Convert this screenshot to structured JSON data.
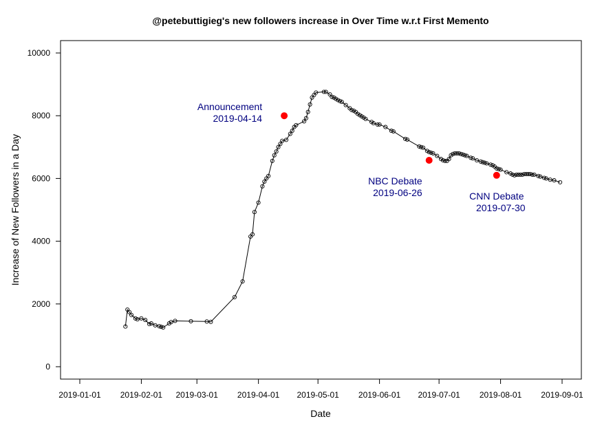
{
  "chart_data": {
    "type": "scatter",
    "title": "@petebuttigieg's new followers increase in Over Time w.r.t First Memento",
    "xlabel": "Date",
    "ylabel": "Increase of New Followers in a Day",
    "xlim": [
      "2019-01-01",
      "2019-09-01"
    ],
    "ylim": [
      0,
      10000
    ],
    "x_ticks": [
      "2019-01-01",
      "2019-02-01",
      "2019-03-01",
      "2019-04-01",
      "2019-05-01",
      "2019-06-01",
      "2019-07-01",
      "2019-08-01",
      "2019-09-01"
    ],
    "y_ticks": [
      0,
      2000,
      4000,
      6000,
      8000,
      10000
    ],
    "grid": false,
    "legend": "none",
    "marker": "open-circle",
    "line": true,
    "series_color": "#000000",
    "highlight_color": "#ff0000",
    "annotation_color": "#000080",
    "points": [
      [
        "2019-01-24",
        1280
      ],
      [
        "2019-01-25",
        1820
      ],
      [
        "2019-01-26",
        1740
      ],
      [
        "2019-01-27",
        1650
      ],
      [
        "2019-01-29",
        1540
      ],
      [
        "2019-01-30",
        1510
      ],
      [
        "2019-02-01",
        1540
      ],
      [
        "2019-02-03",
        1490
      ],
      [
        "2019-02-05",
        1360
      ],
      [
        "2019-02-06",
        1380
      ],
      [
        "2019-02-08",
        1320
      ],
      [
        "2019-02-10",
        1290
      ],
      [
        "2019-02-11",
        1270
      ],
      [
        "2019-02-12",
        1250
      ],
      [
        "2019-02-15",
        1380
      ],
      [
        "2019-02-16",
        1420
      ],
      [
        "2019-02-18",
        1460
      ],
      [
        "2019-02-26",
        1450
      ],
      [
        "2019-03-06",
        1440
      ],
      [
        "2019-03-08",
        1430
      ],
      [
        "2019-03-20",
        2220
      ],
      [
        "2019-03-24",
        2720
      ],
      [
        "2019-03-28",
        4150
      ],
      [
        "2019-03-29",
        4220
      ],
      [
        "2019-03-30",
        4930
      ],
      [
        "2019-04-01",
        5230
      ],
      [
        "2019-04-03",
        5750
      ],
      [
        "2019-04-04",
        5900
      ],
      [
        "2019-04-05",
        6000
      ],
      [
        "2019-04-06",
        6080
      ],
      [
        "2019-04-08",
        6560
      ],
      [
        "2019-04-09",
        6740
      ],
      [
        "2019-04-10",
        6860
      ],
      [
        "2019-04-11",
        7000
      ],
      [
        "2019-04-12",
        7100
      ],
      [
        "2019-04-13",
        7200
      ],
      [
        "2019-04-15",
        7230
      ],
      [
        "2019-04-17",
        7420
      ],
      [
        "2019-04-18",
        7520
      ],
      [
        "2019-04-19",
        7640
      ],
      [
        "2019-04-20",
        7700
      ],
      [
        "2019-04-24",
        7820
      ],
      [
        "2019-04-25",
        7920
      ],
      [
        "2019-04-26",
        8120
      ],
      [
        "2019-04-27",
        8360
      ],
      [
        "2019-04-28",
        8580
      ],
      [
        "2019-04-29",
        8660
      ],
      [
        "2019-04-30",
        8740
      ],
      [
        "2019-05-04",
        8760
      ],
      [
        "2019-05-05",
        8760
      ],
      [
        "2019-05-07",
        8680
      ],
      [
        "2019-05-08",
        8600
      ],
      [
        "2019-05-09",
        8580
      ],
      [
        "2019-05-10",
        8540
      ],
      [
        "2019-05-11",
        8500
      ],
      [
        "2019-05-12",
        8470
      ],
      [
        "2019-05-13",
        8440
      ],
      [
        "2019-05-15",
        8340
      ],
      [
        "2019-05-17",
        8240
      ],
      [
        "2019-05-18",
        8180
      ],
      [
        "2019-05-19",
        8160
      ],
      [
        "2019-05-20",
        8120
      ],
      [
        "2019-05-21",
        8060
      ],
      [
        "2019-05-22",
        8020
      ],
      [
        "2019-05-23",
        7980
      ],
      [
        "2019-05-24",
        7940
      ],
      [
        "2019-05-25",
        7900
      ],
      [
        "2019-05-28",
        7800
      ],
      [
        "2019-05-29",
        7760
      ],
      [
        "2019-05-31",
        7720
      ],
      [
        "2019-06-01",
        7720
      ],
      [
        "2019-06-04",
        7640
      ],
      [
        "2019-06-07",
        7520
      ],
      [
        "2019-06-08",
        7500
      ],
      [
        "2019-06-14",
        7260
      ],
      [
        "2019-06-15",
        7240
      ],
      [
        "2019-06-21",
        7020
      ],
      [
        "2019-06-22",
        7000
      ],
      [
        "2019-06-23",
        6980
      ],
      [
        "2019-06-25",
        6880
      ],
      [
        "2019-06-26",
        6840
      ],
      [
        "2019-06-27",
        6820
      ],
      [
        "2019-06-28",
        6800
      ],
      [
        "2019-06-30",
        6720
      ],
      [
        "2019-07-02",
        6620
      ],
      [
        "2019-07-03",
        6580
      ],
      [
        "2019-07-04",
        6560
      ],
      [
        "2019-07-05",
        6560
      ],
      [
        "2019-07-06",
        6620
      ],
      [
        "2019-07-07",
        6740
      ],
      [
        "2019-07-08",
        6780
      ],
      [
        "2019-07-09",
        6800
      ],
      [
        "2019-07-10",
        6800
      ],
      [
        "2019-07-11",
        6800
      ],
      [
        "2019-07-12",
        6780
      ],
      [
        "2019-07-13",
        6760
      ],
      [
        "2019-07-14",
        6740
      ],
      [
        "2019-07-15",
        6720
      ],
      [
        "2019-07-17",
        6660
      ],
      [
        "2019-07-18",
        6640
      ],
      [
        "2019-07-20",
        6580
      ],
      [
        "2019-07-22",
        6540
      ],
      [
        "2019-07-23",
        6520
      ],
      [
        "2019-07-24",
        6500
      ],
      [
        "2019-07-25",
        6480
      ],
      [
        "2019-07-27",
        6440
      ],
      [
        "2019-07-28",
        6420
      ],
      [
        "2019-07-29",
        6380
      ],
      [
        "2019-07-30",
        6320
      ],
      [
        "2019-07-31",
        6300
      ],
      [
        "2019-08-01",
        6280
      ],
      [
        "2019-08-04",
        6200
      ],
      [
        "2019-08-06",
        6160
      ],
      [
        "2019-08-07",
        6120
      ],
      [
        "2019-08-08",
        6100
      ],
      [
        "2019-08-09",
        6120
      ],
      [
        "2019-08-10",
        6120
      ],
      [
        "2019-08-11",
        6120
      ],
      [
        "2019-08-12",
        6120
      ],
      [
        "2019-08-13",
        6140
      ],
      [
        "2019-08-14",
        6140
      ],
      [
        "2019-08-15",
        6140
      ],
      [
        "2019-08-16",
        6140
      ],
      [
        "2019-08-17",
        6120
      ],
      [
        "2019-08-18",
        6120
      ],
      [
        "2019-08-20",
        6080
      ],
      [
        "2019-08-21",
        6060
      ],
      [
        "2019-08-23",
        6020
      ],
      [
        "2019-08-24",
        6000
      ],
      [
        "2019-08-26",
        5960
      ],
      [
        "2019-08-28",
        5940
      ],
      [
        "2019-08-31",
        5880
      ]
    ],
    "highlights": [
      {
        "label": "Announcement",
        "date_label": "2019-04-14",
        "x": "2019-04-14",
        "y": 8000,
        "anchor": "end"
      },
      {
        "label": "NBC Debate",
        "date_label": "2019-06-26",
        "x": "2019-06-26",
        "y": 6580,
        "anchor": "end"
      },
      {
        "label": "CNN Debate",
        "date_label": "2019-07-30",
        "x": "2019-07-30",
        "y": 6100,
        "anchor": "middle"
      }
    ]
  }
}
